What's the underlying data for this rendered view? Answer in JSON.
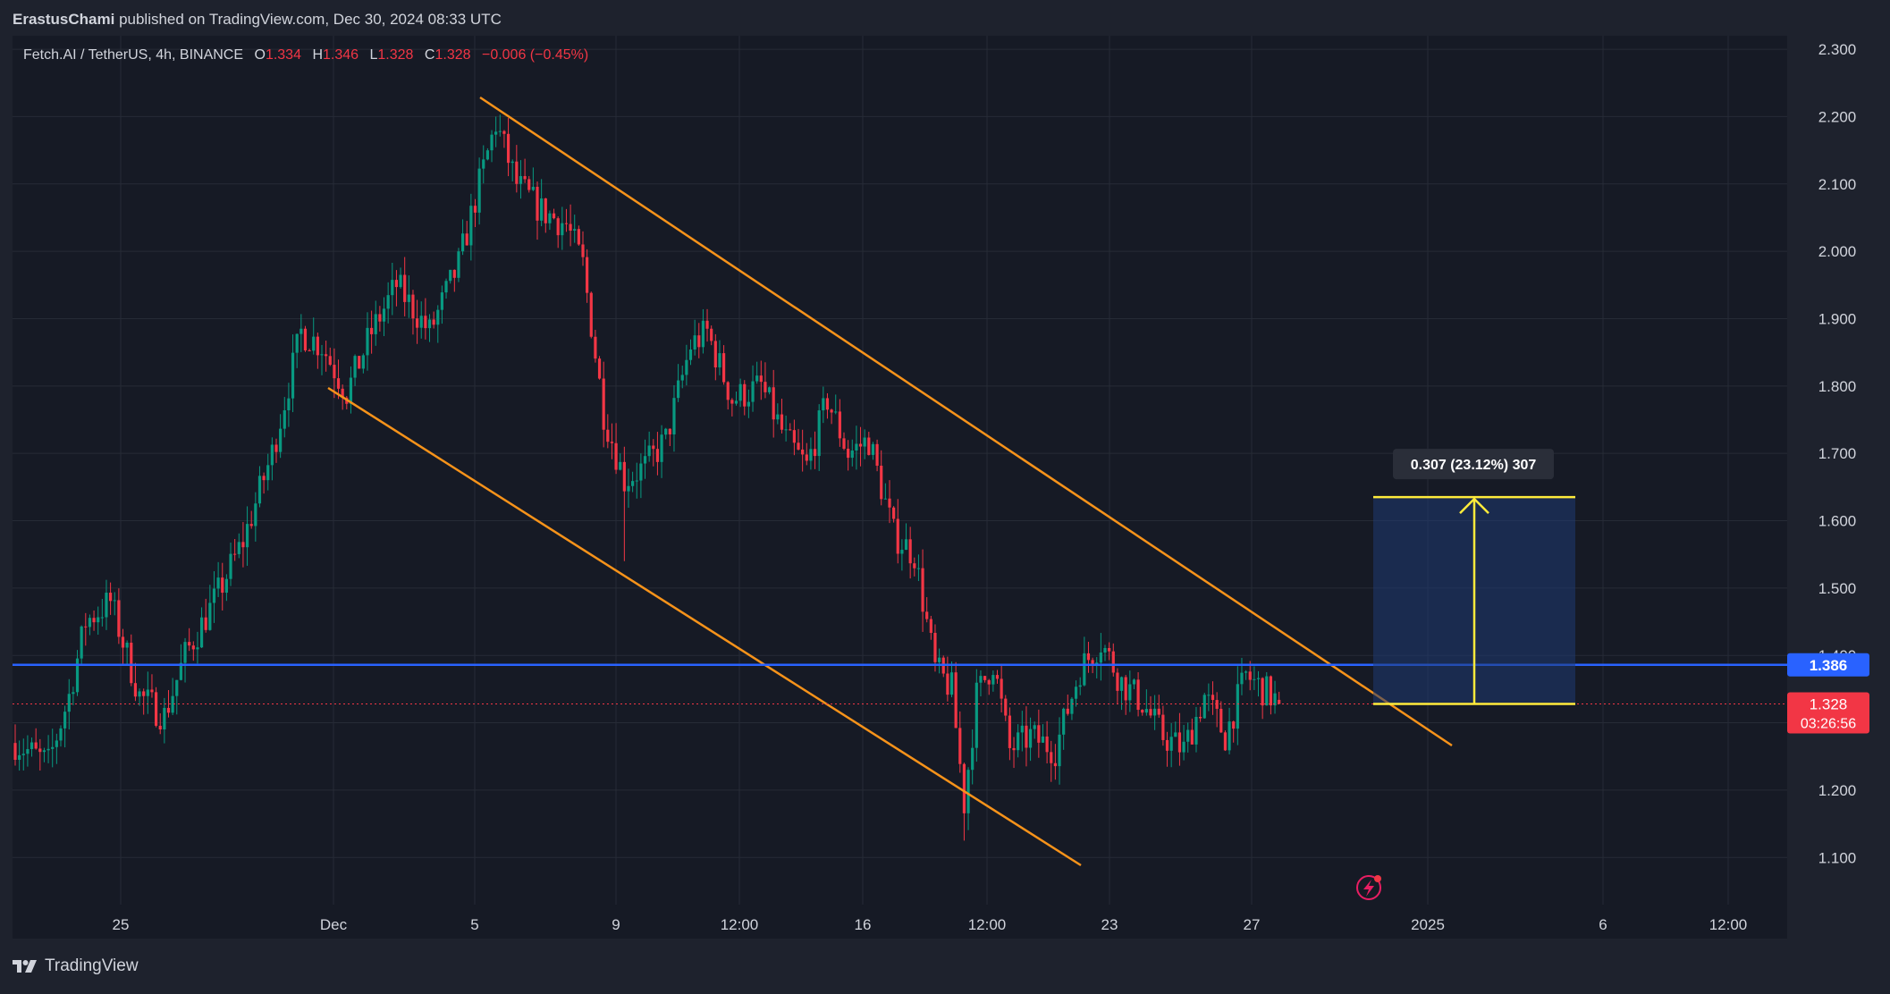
{
  "header": {
    "author": "ErastusChami",
    "published_text": "published on TradingView.com, Dec 30, 2024 08:33 UTC"
  },
  "legend": {
    "symbol": "Fetch.AI / TetherUS, 4h, BINANCE",
    "open_label": "O",
    "open": "1.334",
    "high_label": "H",
    "high": "1.346",
    "low_label": "L",
    "low": "1.328",
    "close_label": "C",
    "close": "1.328",
    "change": "−0.006 (−0.45%)"
  },
  "footer": {
    "brand": "TradingView"
  },
  "colors": {
    "background": "#1e222d",
    "plot_background": "#161a25",
    "up": "#089981",
    "down": "#f23645",
    "channel": "#f7931a",
    "support": "#2962ff",
    "measure": "#ffeb3b",
    "grid": "#262b36"
  },
  "chart_data": {
    "type": "candlestick",
    "y_axis": {
      "range": [
        1.03,
        2.32
      ],
      "ticks": [
        "2.300",
        "2.200",
        "2.100",
        "2.000",
        "1.900",
        "1.800",
        "1.700",
        "1.600",
        "1.500",
        "1.400",
        "1.300",
        "1.200",
        "1.100"
      ]
    },
    "x_axis": {
      "ticks": [
        "25",
        "Dec",
        "5",
        "9",
        "12:00",
        "16",
        "12:00",
        "23",
        "27",
        "2025",
        "6",
        "12:00"
      ]
    },
    "price_labels": {
      "support": "1.386",
      "current": "1.328",
      "countdown": "03:26:56"
    },
    "support_level": 1.386,
    "current_price": 1.328,
    "measure": {
      "label": "0.307 (23.12%) 307",
      "from": 1.328,
      "to": 1.635
    },
    "anchor_closes": [
      [
        0,
        1.27
      ],
      [
        8,
        1.24
      ],
      [
        13,
        1.34
      ],
      [
        17,
        1.45
      ],
      [
        23,
        1.48
      ],
      [
        30,
        1.34
      ],
      [
        36,
        1.31
      ],
      [
        41,
        1.4
      ],
      [
        48,
        1.48
      ],
      [
        55,
        1.57
      ],
      [
        62,
        1.7
      ],
      [
        69,
        1.88
      ],
      [
        74,
        1.86
      ],
      [
        80,
        1.79
      ],
      [
        86,
        1.88
      ],
      [
        92,
        1.95
      ],
      [
        100,
        1.88
      ],
      [
        107,
        1.98
      ],
      [
        112,
        2.1
      ],
      [
        116,
        2.19
      ],
      [
        121,
        2.1
      ],
      [
        127,
        2.06
      ],
      [
        133,
        2.04
      ],
      [
        137,
        1.98
      ],
      [
        142,
        1.76
      ],
      [
        147,
        1.66
      ],
      [
        152,
        1.68
      ],
      [
        157,
        1.72
      ],
      [
        163,
        1.86
      ],
      [
        167,
        1.88
      ],
      [
        173,
        1.78
      ],
      [
        180,
        1.8
      ],
      [
        186,
        1.72
      ],
      [
        191,
        1.68
      ],
      [
        196,
        1.78
      ],
      [
        201,
        1.7
      ],
      [
        206,
        1.72
      ],
      [
        212,
        1.58
      ],
      [
        217,
        1.55
      ],
      [
        222,
        1.38
      ],
      [
        226,
        1.35
      ],
      [
        229,
        1.18
      ],
      [
        232,
        1.34
      ],
      [
        236,
        1.39
      ],
      [
        240,
        1.26
      ],
      [
        245,
        1.28
      ],
      [
        251,
        1.26
      ],
      [
        257,
        1.38
      ],
      [
        262,
        1.42
      ],
      [
        267,
        1.36
      ],
      [
        272,
        1.33
      ],
      [
        277,
        1.28
      ],
      [
        282,
        1.26
      ],
      [
        287,
        1.34
      ],
      [
        292,
        1.28
      ],
      [
        297,
        1.37
      ],
      [
        301,
        1.35
      ],
      [
        305,
        1.33
      ]
    ]
  }
}
